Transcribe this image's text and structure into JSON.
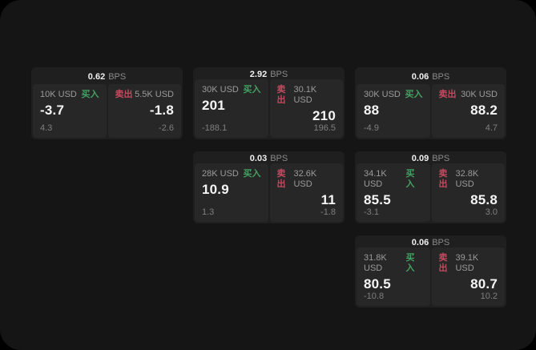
{
  "colors": {
    "buy_accent": "#44a163",
    "sell_accent": "#c34a5f",
    "window_background": "#151515",
    "card_background": "#1f1f1f",
    "panel_background": "#272727"
  },
  "labels": {
    "bps_unit": "BPS",
    "buy": "买入",
    "sell": "卖出"
  },
  "cards": [
    {
      "bps": "0.62",
      "unit": "BPS",
      "buy": {
        "amount": "10K USD",
        "side": "买入",
        "value": "-3.7",
        "sub": "4.3"
      },
      "sell": {
        "amount": "5.5K USD",
        "side": "卖出",
        "value": "-1.8",
        "sub": "-2.6"
      }
    },
    {
      "bps": "2.92",
      "unit": "BPS",
      "buy": {
        "amount": "30K USD",
        "side": "买入",
        "value": "201",
        "sub": "-188.1"
      },
      "sell": {
        "amount": "30.1K USD",
        "side": "卖出",
        "value": "210",
        "sub": "196.5"
      }
    },
    {
      "bps": "0.06",
      "unit": "BPS",
      "buy": {
        "amount": "30K USD",
        "side": "买入",
        "value": "88",
        "sub": "-4.9"
      },
      "sell": {
        "amount": "30K USD",
        "side": "卖出",
        "value": "88.2",
        "sub": "4.7"
      }
    },
    {
      "bps": "0.03",
      "unit": "BPS",
      "buy": {
        "amount": "28K USD",
        "side": "买入",
        "value": "10.9",
        "sub": "1.3"
      },
      "sell": {
        "amount": "32.6K USD",
        "side": "卖出",
        "value": "11",
        "sub": "-1.8"
      }
    },
    {
      "bps": "0.09",
      "unit": "BPS",
      "buy": {
        "amount": "34.1K USD",
        "side": "买入",
        "value": "85.5",
        "sub": "-3.1"
      },
      "sell": {
        "amount": "32.8K USD",
        "side": "卖出",
        "value": "85.8",
        "sub": "3.0"
      }
    },
    {
      "bps": "0.06",
      "unit": "BPS",
      "buy": {
        "amount": "31.8K USD",
        "side": "买入",
        "value": "80.5",
        "sub": "-10.8"
      },
      "sell": {
        "amount": "39.1K USD",
        "side": "卖出",
        "value": "80.7",
        "sub": "10.2"
      }
    }
  ]
}
